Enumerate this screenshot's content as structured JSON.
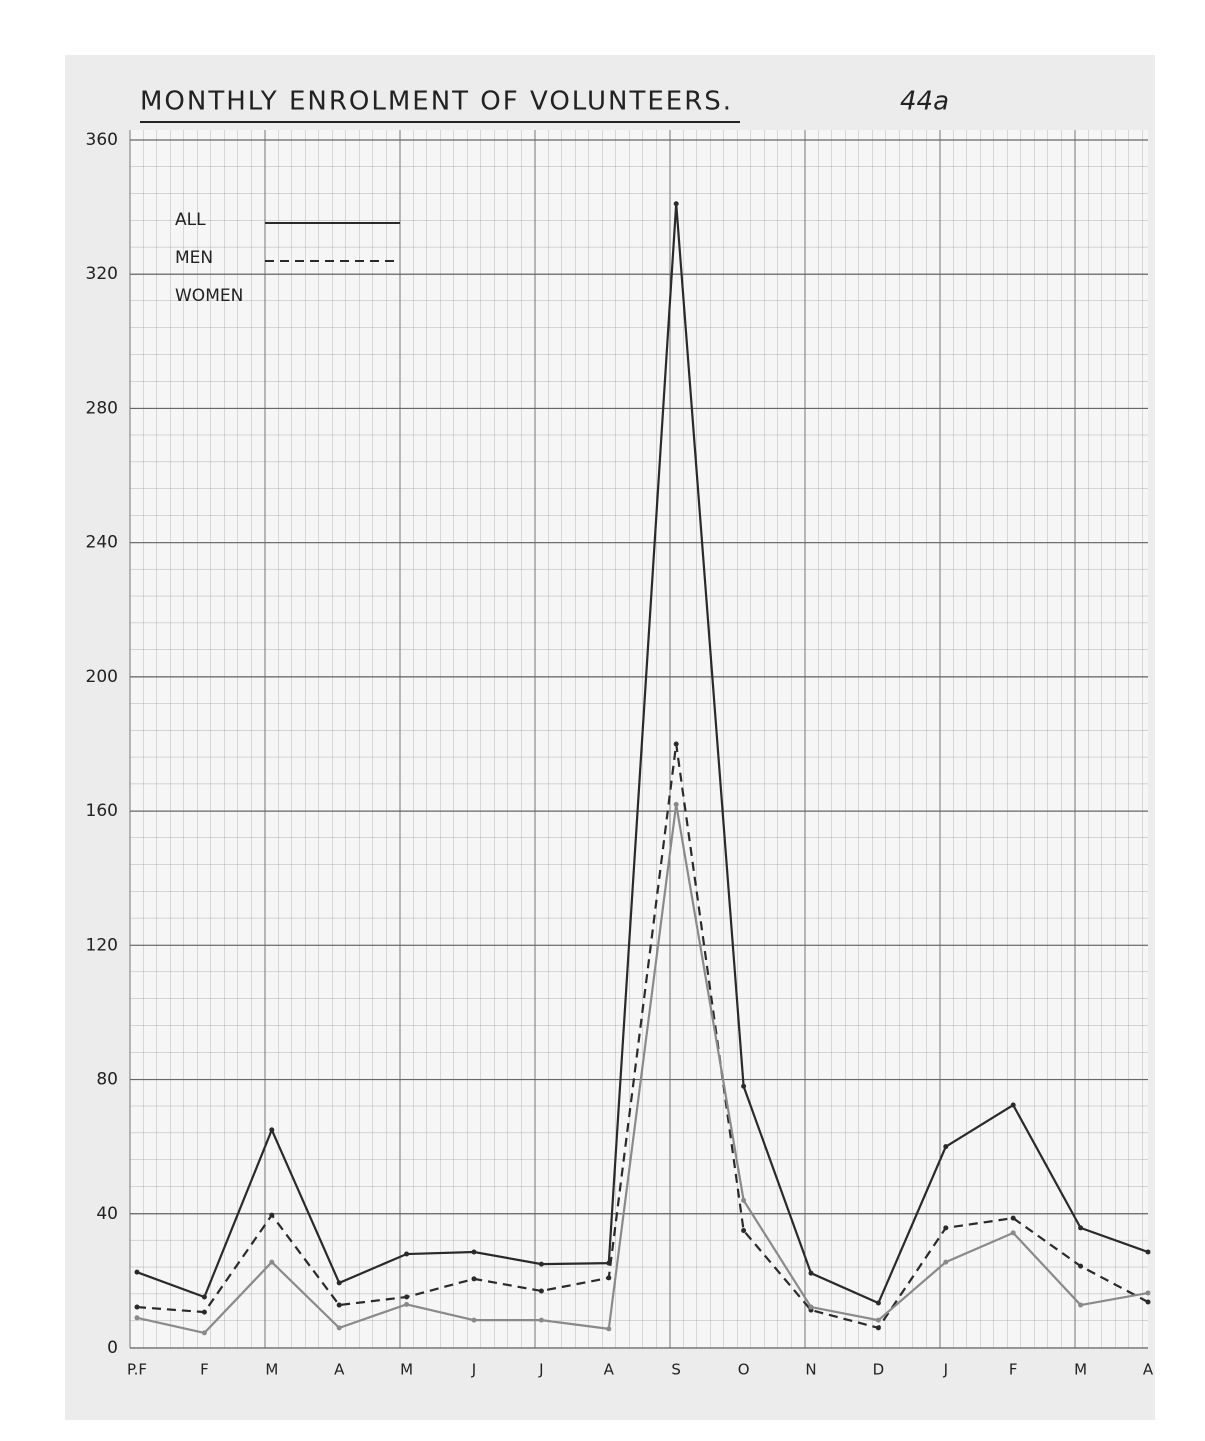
{
  "chart_data": {
    "type": "line",
    "title": "MONTHLY ENROLMENT OF VOLUNTEERS.",
    "annotation": "44a",
    "categories": [
      "P.F",
      "F",
      "M",
      "A",
      "M",
      "J",
      "J",
      "A",
      "S",
      "O",
      "N",
      "D",
      "J",
      "F",
      "M",
      "A"
    ],
    "series": [
      {
        "name": "ALL",
        "color": "#2a2a2a",
        "dash": "solid",
        "values": [
          22.6,
          15.2,
          65,
          19.4,
          28,
          28.6,
          25,
          25.3,
          341,
          78,
          22.3,
          13.4,
          60,
          72.4,
          35.8,
          28.6
        ]
      },
      {
        "name": "MEN",
        "color": "#2a2a2a",
        "dash": "dashed",
        "values": [
          12.2,
          10.7,
          39.6,
          12.8,
          15.2,
          20.6,
          17,
          20.9,
          180,
          35,
          11.3,
          6,
          35.8,
          38.7,
          24.4,
          13.7
        ]
      },
      {
        "name": "WOMEN",
        "color": "#8a8a8a",
        "dash": "solid",
        "values": [
          9,
          4.5,
          25.6,
          6,
          13,
          8.3,
          8.3,
          5.7,
          162,
          44,
          12.2,
          8.3,
          25.6,
          34.3,
          12.8,
          16.4
        ]
      }
    ],
    "ylim": [
      0,
      360
    ],
    "yticks": [
      0,
      40,
      80,
      120,
      160,
      200,
      240,
      280,
      320,
      360
    ],
    "grid": true
  }
}
